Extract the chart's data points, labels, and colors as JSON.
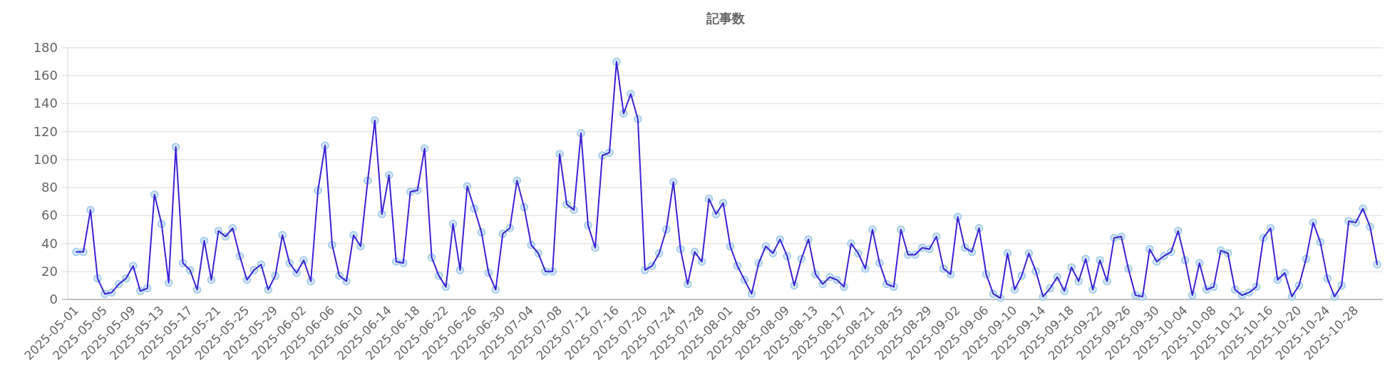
{
  "chart_data": {
    "type": "line",
    "title": "記事数",
    "categories": [
      "2025-05-01",
      null,
      null,
      null,
      "2025-05-05",
      null,
      null,
      null,
      "2025-05-09",
      null,
      null,
      null,
      "2025-05-13",
      null,
      null,
      null,
      "2025-05-17",
      null,
      null,
      null,
      "2025-05-21",
      null,
      null,
      null,
      "2025-05-25",
      null,
      null,
      null,
      "2025-05-29",
      null,
      null,
      null,
      "2025-06-02",
      null,
      null,
      null,
      "2025-06-06",
      null,
      null,
      null,
      "2025-06-10",
      null,
      null,
      null,
      "2025-06-14",
      null,
      null,
      null,
      "2025-06-18",
      null,
      null,
      null,
      "2025-06-22",
      null,
      null,
      null,
      "2025-06-26",
      null,
      null,
      null,
      "2025-06-30",
      null,
      null,
      null,
      "2025-07-04",
      null,
      null,
      null,
      "2025-07-08",
      null,
      null,
      null,
      "2025-07-12",
      null,
      null,
      null,
      "2025-07-16",
      null,
      null,
      null,
      "2025-07-20",
      null,
      null,
      null,
      "2025-07-24",
      null,
      null,
      null,
      "2025-07-28",
      null,
      null,
      null,
      "2025-08-01",
      null,
      null,
      null,
      "2025-08-05",
      null,
      null,
      null,
      "2025-08-09",
      null,
      null,
      null,
      "2025-08-13",
      null,
      null,
      null,
      "2025-08-17",
      null,
      null,
      null,
      "2025-08-21",
      null,
      null,
      null,
      "2025-08-25",
      null,
      null,
      null,
      "2025-08-29",
      null,
      null,
      null,
      "2025-09-02",
      null,
      null,
      null,
      "2025-09-06",
      null,
      null,
      null,
      "2025-09-10",
      null,
      null,
      null,
      "2025-09-14",
      null,
      null,
      null,
      "2025-09-18",
      null,
      null,
      null,
      "2025-09-22",
      null,
      null,
      null,
      "2025-09-26",
      null,
      null,
      null,
      "2025-09-30",
      null,
      null,
      null,
      "2025-10-04",
      null,
      null,
      null,
      "2025-10-08",
      null,
      null,
      null,
      "2025-10-12",
      null,
      null,
      null,
      "2025-10-16",
      null,
      null,
      null,
      "2025-10-20",
      null,
      null,
      null,
      "2025-10-24",
      null,
      null,
      null,
      "2025-10-28",
      null,
      null,
      null
    ],
    "series": [
      {
        "color": "#3a22d4",
        "values": [
          34,
          34,
          64,
          15,
          4,
          5,
          11,
          15,
          24,
          6,
          8,
          75,
          54,
          12,
          109,
          26,
          21,
          7,
          42,
          14,
          49,
          45,
          51,
          31,
          14,
          21,
          25,
          7,
          17,
          46,
          26,
          19,
          28,
          13,
          78,
          110,
          39,
          17,
          13,
          46,
          38,
          85,
          128,
          61,
          89,
          27,
          26,
          77,
          78,
          108,
          30,
          17,
          9,
          54,
          21,
          81,
          65,
          48,
          19,
          7,
          47,
          51,
          85,
          66,
          39,
          33,
          20,
          20,
          104,
          68,
          64,
          119,
          53,
          37,
          103,
          105,
          170,
          133,
          147,
          129,
          21,
          24,
          33,
          50,
          84,
          36,
          11,
          34,
          27,
          72,
          61,
          69,
          38,
          24,
          14,
          4,
          26,
          38,
          33,
          43,
          31,
          10,
          29,
          43,
          18,
          11,
          16,
          14,
          9,
          40,
          33,
          22,
          50,
          26,
          11,
          9,
          50,
          32,
          32,
          37,
          36,
          45,
          22,
          18,
          59,
          37,
          34,
          51,
          18,
          4,
          1,
          33,
          7,
          17,
          33,
          20,
          2,
          8,
          16,
          6,
          23,
          13,
          29,
          7,
          28,
          13,
          44,
          45,
          22,
          3,
          2,
          36,
          27,
          31,
          34,
          49,
          28,
          3,
          26,
          7,
          9,
          35,
          33,
          7,
          3,
          5,
          9,
          44,
          51,
          14,
          19,
          2,
          10,
          29,
          55,
          41,
          15,
          2,
          10,
          56,
          55,
          65,
          52,
          25
        ]
      }
    ],
    "ylim": [
      0,
      180
    ],
    "yticks": [
      0,
      20,
      40,
      60,
      80,
      100,
      120,
      140,
      160,
      180
    ],
    "grid": "y",
    "marker": "circle"
  }
}
